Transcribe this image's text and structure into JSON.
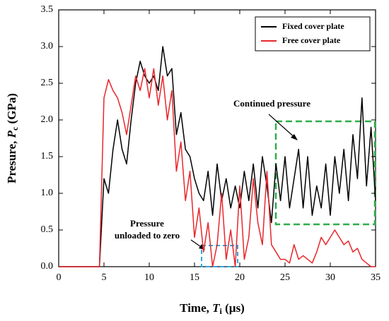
{
  "chart_data": {
    "type": "line",
    "xlabel": {
      "text": "Time, ",
      "var": "T",
      "sub": "i",
      "unit": " (µs)"
    },
    "ylabel": {
      "text": "Presure, ",
      "var": "P",
      "sub": "c",
      "unit": " (GPa)"
    },
    "x": [
      0,
      0.5,
      1,
      1.5,
      2,
      2.5,
      3,
      3.5,
      4,
      4.5,
      5,
      5.5,
      6,
      6.5,
      7,
      7.5,
      8,
      8.5,
      9,
      9.5,
      10,
      10.5,
      11,
      11.5,
      12,
      12.5,
      13,
      13.5,
      14,
      14.5,
      15,
      15.5,
      16,
      16.5,
      17,
      17.5,
      18,
      18.5,
      19,
      19.5,
      20,
      20.5,
      21,
      21.5,
      22,
      22.5,
      23,
      23.5,
      24,
      24.5,
      25,
      25.5,
      26,
      26.5,
      27,
      27.5,
      28,
      28.5,
      29,
      29.5,
      30,
      30.5,
      31,
      31.5,
      32,
      32.5,
      33,
      33.5,
      34,
      34.5,
      35
    ],
    "series": [
      {
        "name": "Fixed cover plate",
        "color": "#000000",
        "values": [
          0,
          0,
          0,
          0,
          0,
          0,
          0,
          0,
          0,
          0,
          1.2,
          1.0,
          1.6,
          2.0,
          1.6,
          1.4,
          2.0,
          2.5,
          2.8,
          2.6,
          2.5,
          2.6,
          2.4,
          3.0,
          2.6,
          2.7,
          1.8,
          2.1,
          1.6,
          1.5,
          1.2,
          1.0,
          0.9,
          1.3,
          0.7,
          1.4,
          0.9,
          1.2,
          0.8,
          1.1,
          0.8,
          1.3,
          0.9,
          1.4,
          0.8,
          1.5,
          1.1,
          0.6,
          1.4,
          0.9,
          1.5,
          0.8,
          1.2,
          1.6,
          0.8,
          1.5,
          0.7,
          1.1,
          0.8,
          1.4,
          0.7,
          1.5,
          1.0,
          1.6,
          0.9,
          1.8,
          1.2,
          2.3,
          1.1,
          1.9,
          0.9
        ]
      },
      {
        "name": "Free cover plate",
        "color": "#e8262b",
        "values": [
          0,
          0,
          0,
          0,
          0,
          0,
          0,
          0,
          0,
          0,
          2.3,
          2.55,
          2.4,
          2.3,
          2.1,
          1.8,
          2.2,
          2.6,
          2.4,
          2.7,
          2.3,
          2.7,
          2.2,
          2.6,
          2.0,
          2.4,
          1.3,
          1.7,
          0.9,
          1.3,
          0.4,
          0.8,
          0.2,
          0.6,
          0.0,
          0.3,
          1.0,
          0.1,
          0.5,
          0.0,
          1.1,
          0.1,
          0.4,
          1.2,
          0.6,
          0.3,
          1.3,
          0.3,
          0.2,
          0.1,
          0.1,
          0.05,
          0.3,
          0.1,
          0.15,
          0.1,
          0.05,
          0.2,
          0.4,
          0.3,
          0.4,
          0.5,
          0.4,
          0.3,
          0.35,
          0.2,
          0.25,
          0.1,
          0.05,
          0.0,
          0.0
        ]
      }
    ],
    "xlim": [
      0,
      35
    ],
    "ylim": [
      0,
      3.5
    ],
    "xticks": [
      0,
      5,
      10,
      15,
      20,
      25,
      30,
      35
    ],
    "yticks": [
      {
        "value": 0,
        "label": "0.0"
      },
      {
        "value": 0.5,
        "label": "0.5"
      },
      {
        "value": 1,
        "label": "1.0"
      },
      {
        "value": 1.5,
        "label": "1.5"
      },
      {
        "value": 2,
        "label": "2.0"
      },
      {
        "value": 2.5,
        "label": "2.5"
      },
      {
        "value": 3,
        "label": "3.0"
      },
      {
        "value": 3.5,
        "label": "3.5"
      }
    ],
    "legend": "upper right",
    "annotations": [
      "Continued pressure",
      "Pressure",
      "unloaded to zero"
    ]
  }
}
